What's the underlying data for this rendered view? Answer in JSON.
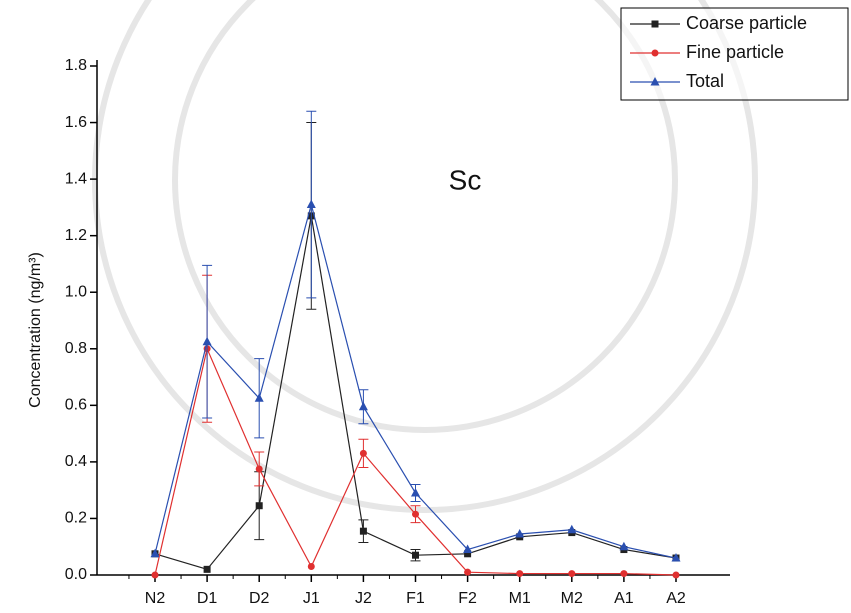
{
  "chart_data": {
    "type": "line",
    "annotation": "Sc",
    "y_label": "Concentration (ng/m³)",
    "categories": [
      "N2",
      "D1",
      "D2",
      "J1",
      "J2",
      "F1",
      "F2",
      "M1",
      "M2",
      "A1",
      "A2"
    ],
    "ylim": [
      0,
      1.8
    ],
    "yticks": [
      {
        "value": 0,
        "label": "0.0"
      },
      {
        "value": 0.2,
        "label": "0.2"
      },
      {
        "value": 0.4,
        "label": "0.4"
      },
      {
        "value": 0.6,
        "label": "0.6"
      },
      {
        "value": 0.8,
        "label": "0.8"
      },
      {
        "value": 1.0,
        "label": "1.0"
      },
      {
        "value": 1.2,
        "label": "1.2"
      },
      {
        "value": 1.4,
        "label": "1.4"
      },
      {
        "value": 1.6,
        "label": "1.6"
      },
      {
        "value": 1.8,
        "label": "1.8"
      }
    ],
    "legend": "top-right",
    "series": [
      {
        "name": "Coarse particle",
        "color": "#222222",
        "marker": "square",
        "values": [
          0.075,
          0.02,
          0.245,
          1.27,
          0.155,
          0.07,
          0.075,
          0.135,
          0.15,
          0.09,
          0.06
        ],
        "errors": [
          null,
          null,
          0.12,
          0.33,
          0.04,
          0.02,
          null,
          null,
          null,
          null,
          null
        ]
      },
      {
        "name": "Fine particle",
        "color": "#e03030",
        "marker": "circle",
        "values": [
          0,
          0.8,
          0.375,
          0.03,
          0.43,
          0.215,
          0.01,
          0.005,
          0.005,
          0.005,
          0
        ],
        "errors": [
          null,
          0.26,
          0.06,
          null,
          0.05,
          0.03,
          null,
          null,
          null,
          null,
          null
        ]
      },
      {
        "name": "Total",
        "color": "#2a4fb0",
        "marker": "triangle",
        "values": [
          0.075,
          0.825,
          0.625,
          1.31,
          0.595,
          0.29,
          0.09,
          0.145,
          0.16,
          0.1,
          0.06
        ],
        "errors": [
          null,
          0.27,
          0.14,
          0.33,
          0.06,
          0.03,
          null,
          null,
          null,
          null,
          null
        ]
      }
    ]
  }
}
